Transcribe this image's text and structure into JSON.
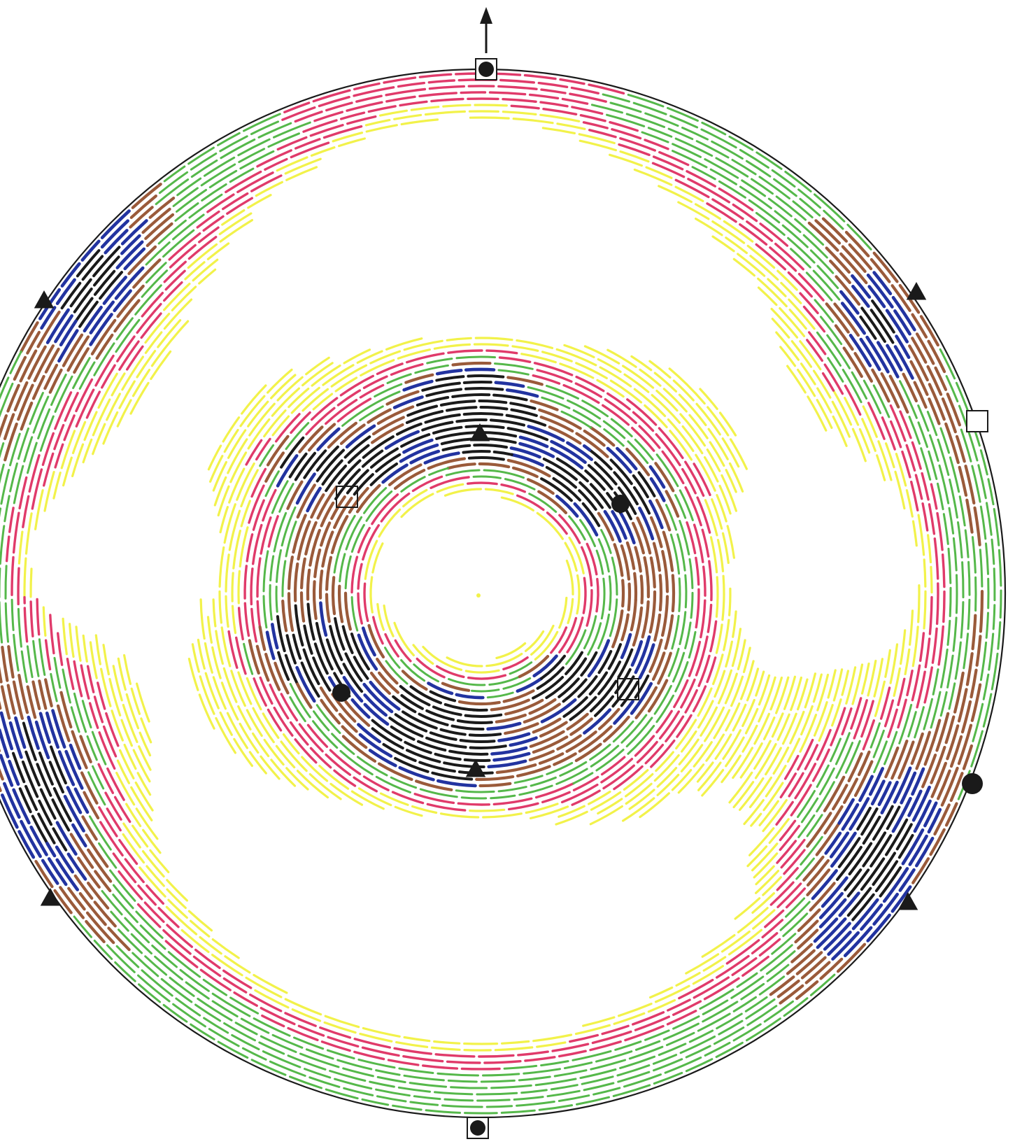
{
  "diagram": {
    "kind": "pole-figure",
    "colors": {
      "level_1": "#f2f24a",
      "level_2": "#e03a6a",
      "level_3": "#55b84a",
      "level_4": "#9a5a3a",
      "level_5": "#2233a0",
      "level_6": "#1a1a1a",
      "outline": "#1a1a1a",
      "background": "#ffffff"
    },
    "marker_symbols": [
      "filled-square-with-dot",
      "filled-circle",
      "open-square",
      "filled-triangle"
    ],
    "direction_arrow": "up"
  }
}
